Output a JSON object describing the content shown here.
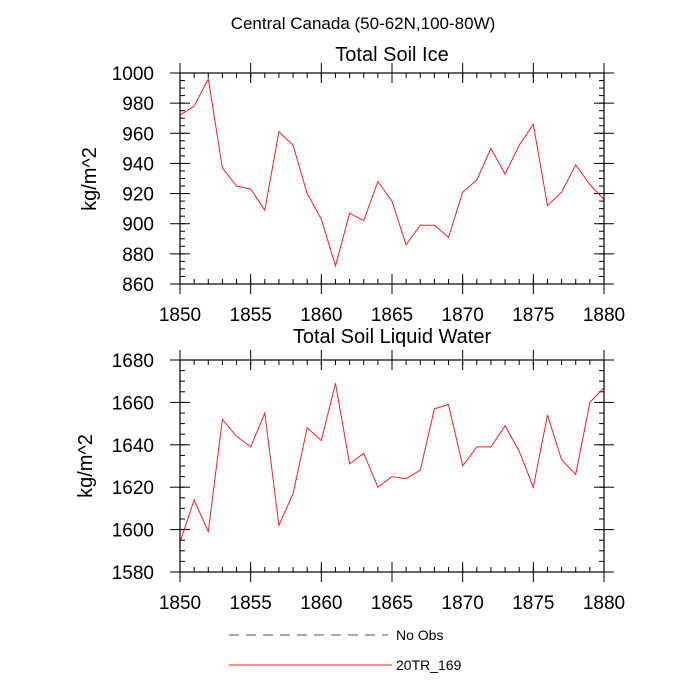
{
  "figure_title": "Central Canada (50-62N,100-80W)",
  "legend": {
    "items": [
      {
        "label": "No Obs",
        "color": "#4a4ab0",
        "style": "dashed"
      },
      {
        "label": "20TR_169",
        "color": "#e8232a",
        "style": "solid"
      }
    ]
  },
  "chart_data": [
    {
      "type": "line",
      "title": "Total Soil Ice",
      "xlabel": "",
      "ylabel": "kg/m^2",
      "xlim": [
        1850,
        1880
      ],
      "ylim": [
        860,
        1000
      ],
      "xticks": [
        1850,
        1855,
        1860,
        1865,
        1870,
        1875,
        1880
      ],
      "xtick_labels": [
        "1850",
        "1855",
        "1860",
        "1865",
        "1870",
        "1875",
        "1880"
      ],
      "yticks": [
        860,
        880,
        900,
        920,
        940,
        960,
        980,
        1000
      ],
      "ytick_labels": [
        "860",
        "880",
        "900",
        "920",
        "940",
        "960",
        "980",
        "1000"
      ],
      "grid": false,
      "series": [
        {
          "name": "20TR_169",
          "color": "#e8232a",
          "x": [
            1850,
            1851,
            1852,
            1853,
            1854,
            1855,
            1856,
            1857,
            1858,
            1859,
            1860,
            1861,
            1862,
            1863,
            1864,
            1865,
            1866,
            1867,
            1868,
            1869,
            1870,
            1871,
            1872,
            1873,
            1874,
            1875,
            1876,
            1877,
            1878,
            1879,
            1880
          ],
          "values": [
            972,
            978,
            996,
            937,
            925,
            923,
            909,
            961,
            952,
            920,
            903,
            872,
            907,
            902,
            928,
            915,
            886,
            899,
            899,
            891,
            921,
            929,
            950,
            933,
            952,
            966,
            912,
            921,
            939,
            926,
            916
          ]
        }
      ]
    },
    {
      "type": "line",
      "title": "Total Soil Liquid Water",
      "xlabel": "",
      "ylabel": "kg/m^2",
      "xlim": [
        1850,
        1880
      ],
      "ylim": [
        1580,
        1680
      ],
      "xticks": [
        1850,
        1855,
        1860,
        1865,
        1870,
        1875,
        1880
      ],
      "xtick_labels": [
        "1850",
        "1855",
        "1860",
        "1865",
        "1870",
        "1875",
        "1880"
      ],
      "yticks": [
        1580,
        1600,
        1620,
        1640,
        1660,
        1680
      ],
      "ytick_labels": [
        "1580",
        "1600",
        "1620",
        "1640",
        "1660",
        "1680"
      ],
      "grid": false,
      "series": [
        {
          "name": "20TR_169",
          "color": "#e8232a",
          "x": [
            1850,
            1851,
            1852,
            1853,
            1854,
            1855,
            1856,
            1857,
            1858,
            1859,
            1860,
            1861,
            1862,
            1863,
            1864,
            1865,
            1866,
            1867,
            1868,
            1869,
            1870,
            1871,
            1872,
            1873,
            1874,
            1875,
            1876,
            1877,
            1878,
            1879,
            1880
          ],
          "values": [
            1594,
            1614,
            1599,
            1652,
            1644,
            1639,
            1655,
            1602,
            1617,
            1648,
            1642,
            1669,
            1631,
            1636,
            1620,
            1625,
            1624,
            1628,
            1657,
            1659,
            1630,
            1639,
            1639,
            1649,
            1637,
            1620,
            1654,
            1633,
            1626,
            1660,
            1667
          ]
        }
      ]
    }
  ]
}
